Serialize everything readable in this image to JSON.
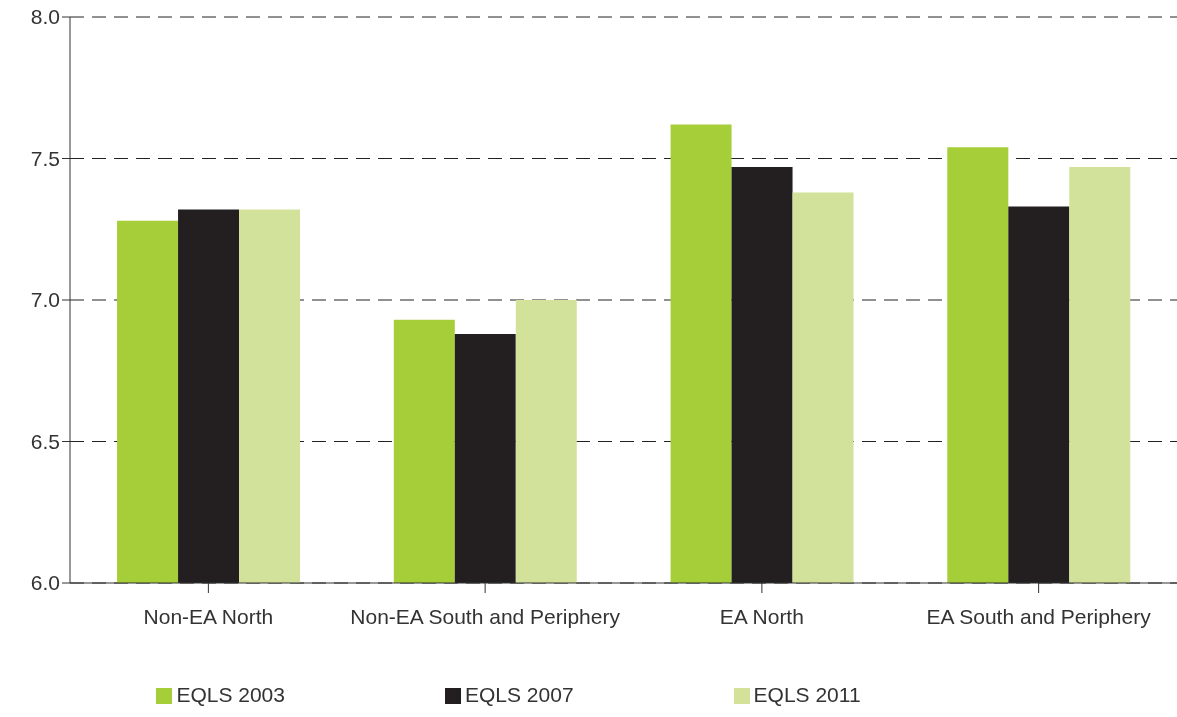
{
  "chart_data": {
    "type": "bar",
    "categories": [
      "Non-EA North",
      "Non-EA South and Periphery",
      "EA North",
      "EA South and Periphery"
    ],
    "series": [
      {
        "name": "EQLS 2003",
        "color": "#a6ce39",
        "values": [
          7.28,
          6.93,
          7.62,
          7.54
        ]
      },
      {
        "name": "EQLS 2007",
        "color": "#231f20",
        "values": [
          7.32,
          6.88,
          7.47,
          7.33
        ]
      },
      {
        "name": "EQLS 2011",
        "color": "#d3e29b",
        "values": [
          7.32,
          7.0,
          7.38,
          7.47
        ]
      }
    ],
    "ylim": [
      6,
      8
    ],
    "yticks": [
      {
        "value": 6,
        "label": "6.0"
      },
      {
        "value": 6.5,
        "label": "6.5"
      },
      {
        "value": 7,
        "label": "7.0"
      },
      {
        "value": 7.5,
        "label": "7.5"
      },
      {
        "value": 8,
        "label": "8.0"
      }
    ],
    "grid": "y",
    "legend": "bottom"
  }
}
